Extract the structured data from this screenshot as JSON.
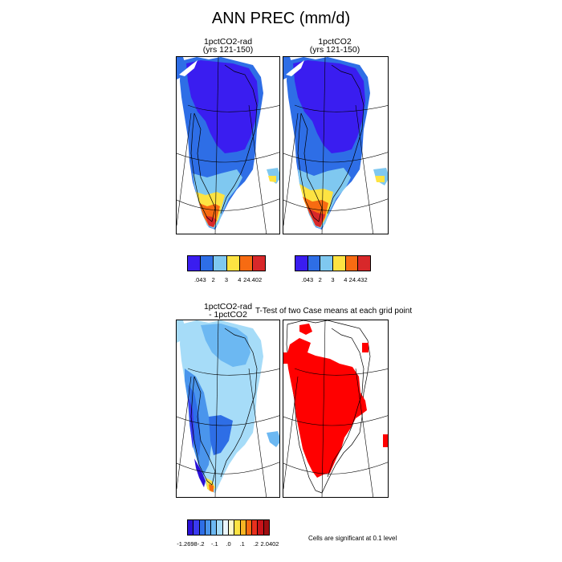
{
  "main_title": "ANN PREC (mm/d)",
  "panels": {
    "p1": {
      "title_line1": "1pctCO2-rad",
      "title_line2": "(yrs 121-150)"
    },
    "p2": {
      "title_line1": "1pctCO2",
      "title_line2": "(yrs 121-150)"
    },
    "p3": {
      "title_line1": "1pctCO2-rad",
      "title_line2": "- 1pctCO2"
    },
    "p4": {
      "title_line1": "T-Test of two Case means at each grid point"
    }
  },
  "colorbars": {
    "cb1": {
      "colors": [
        "#3a1df0",
        "#2e6ee6",
        "#7fc8f0",
        "#fde342",
        "#f76b12",
        "#d8282a"
      ],
      "labels": [
        ".043",
        "2",
        "3",
        "4",
        "24.402"
      ]
    },
    "cb2": {
      "colors": [
        "#3a1df0",
        "#2e6ee6",
        "#7fc8f0",
        "#fde342",
        "#f76b12",
        "#d8282a"
      ],
      "labels": [
        ".043",
        "2",
        "3",
        "4",
        "24.432"
      ]
    },
    "cb3": {
      "colors": [
        "#2a10d8",
        "#3a3af0",
        "#2e6ee6",
        "#4a95ec",
        "#6cb8f2",
        "#a6dcf8",
        "#eaf6fc",
        "#fff8c8",
        "#fde342",
        "#f8b524",
        "#f76b12",
        "#e8301e",
        "#c8141a",
        "#a00e10"
      ],
      "labels": [
        "-1.2698",
        "-.2",
        "-.1",
        ".0",
        ".1",
        ".2",
        "2.0402"
      ]
    }
  },
  "significance_note": "Cells are significant at 0.1 level",
  "map_colors": {
    "high_precip": "#3a1df0",
    "mid_precip": "#2e6ee6",
    "light": "#7fc8f0",
    "yellow": "#fde342",
    "orange": "#f76b12",
    "red": "#d8282a",
    "significant": "#ff0000"
  }
}
